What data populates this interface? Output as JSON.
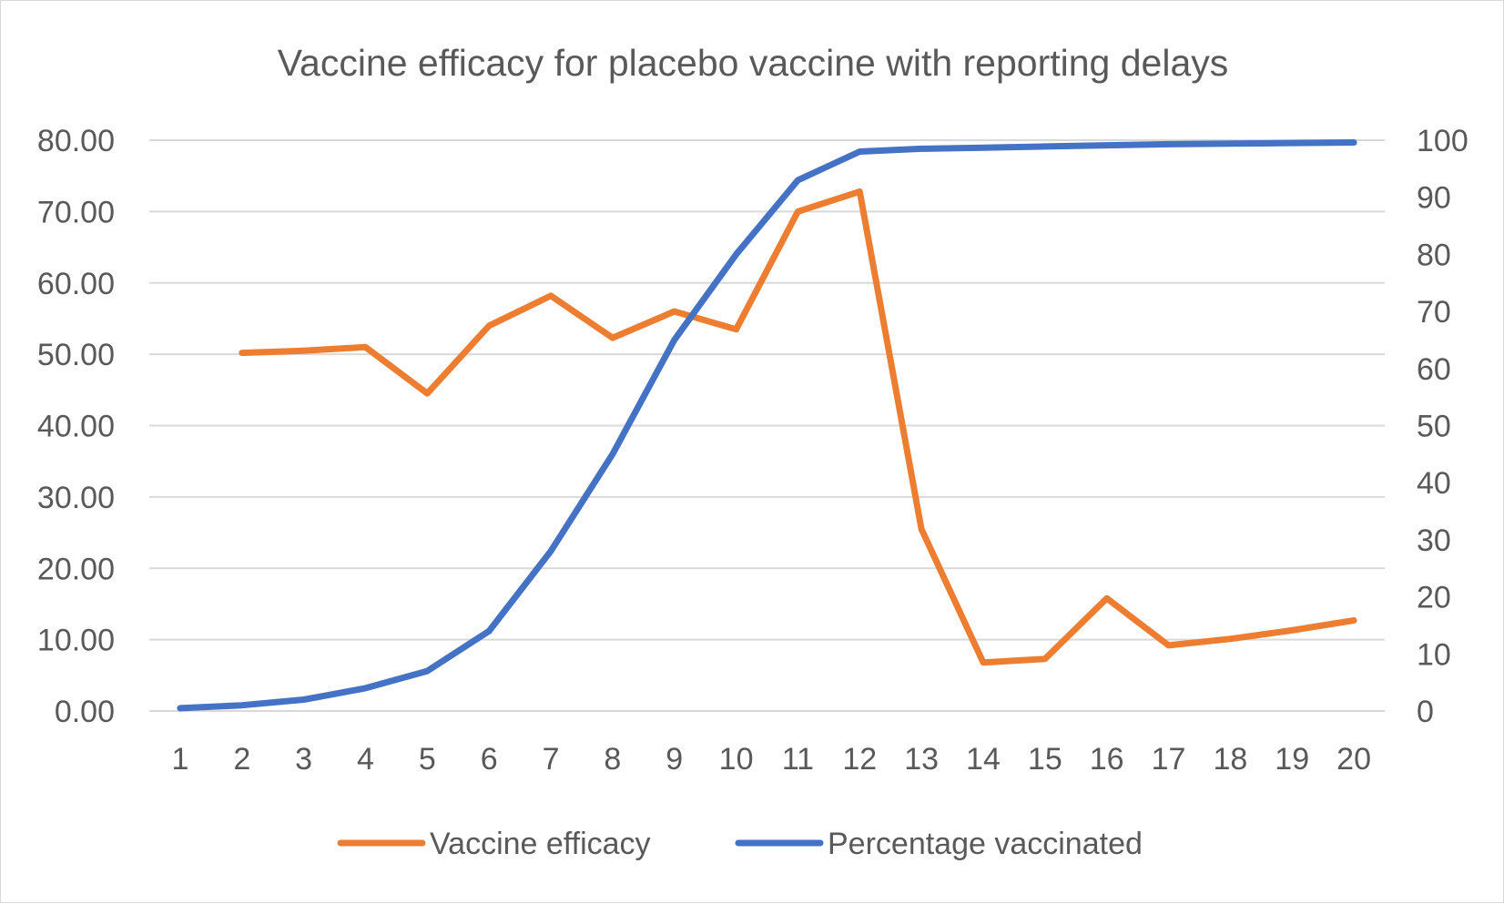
{
  "chart_data": {
    "type": "line",
    "title": "Vaccine efficacy for placebo vaccine with reporting delays",
    "xlabel": "",
    "ylabel": "",
    "categories": [
      "1",
      "2",
      "3",
      "4",
      "5",
      "6",
      "7",
      "8",
      "9",
      "10",
      "11",
      "12",
      "13",
      "14",
      "15",
      "16",
      "17",
      "18",
      "19",
      "20"
    ],
    "y_left": {
      "min": 0,
      "max": 80,
      "step": 10,
      "ticks": [
        "0.00",
        "10.00",
        "20.00",
        "30.00",
        "40.00",
        "50.00",
        "60.00",
        "70.00",
        "80.00"
      ]
    },
    "y_right": {
      "min": 0,
      "max": 100,
      "step": 10,
      "ticks": [
        "0",
        "10",
        "20",
        "30",
        "40",
        "50",
        "60",
        "70",
        "80",
        "90",
        "100"
      ]
    },
    "grid": true,
    "legend_position": "bottom",
    "series": [
      {
        "name": "Vaccine efficacy",
        "axis": "left",
        "color": "#ED7D31",
        "values": [
          null,
          50.2,
          50.5,
          51.0,
          44.5,
          54.0,
          58.2,
          52.3,
          56.0,
          53.5,
          70.0,
          72.8,
          25.5,
          6.8,
          7.3,
          15.8,
          9.2,
          10.1,
          11.3,
          12.7
        ]
      },
      {
        "name": "Percentage  vaccinated",
        "axis": "right",
        "color": "#4472C4",
        "values": [
          0.5,
          1.0,
          2.0,
          4.0,
          7.0,
          14.0,
          28.0,
          45.0,
          65.0,
          80.0,
          93.0,
          98.0,
          98.5,
          98.7,
          98.9,
          99.1,
          99.3,
          99.4,
          99.5,
          99.6
        ]
      }
    ]
  }
}
